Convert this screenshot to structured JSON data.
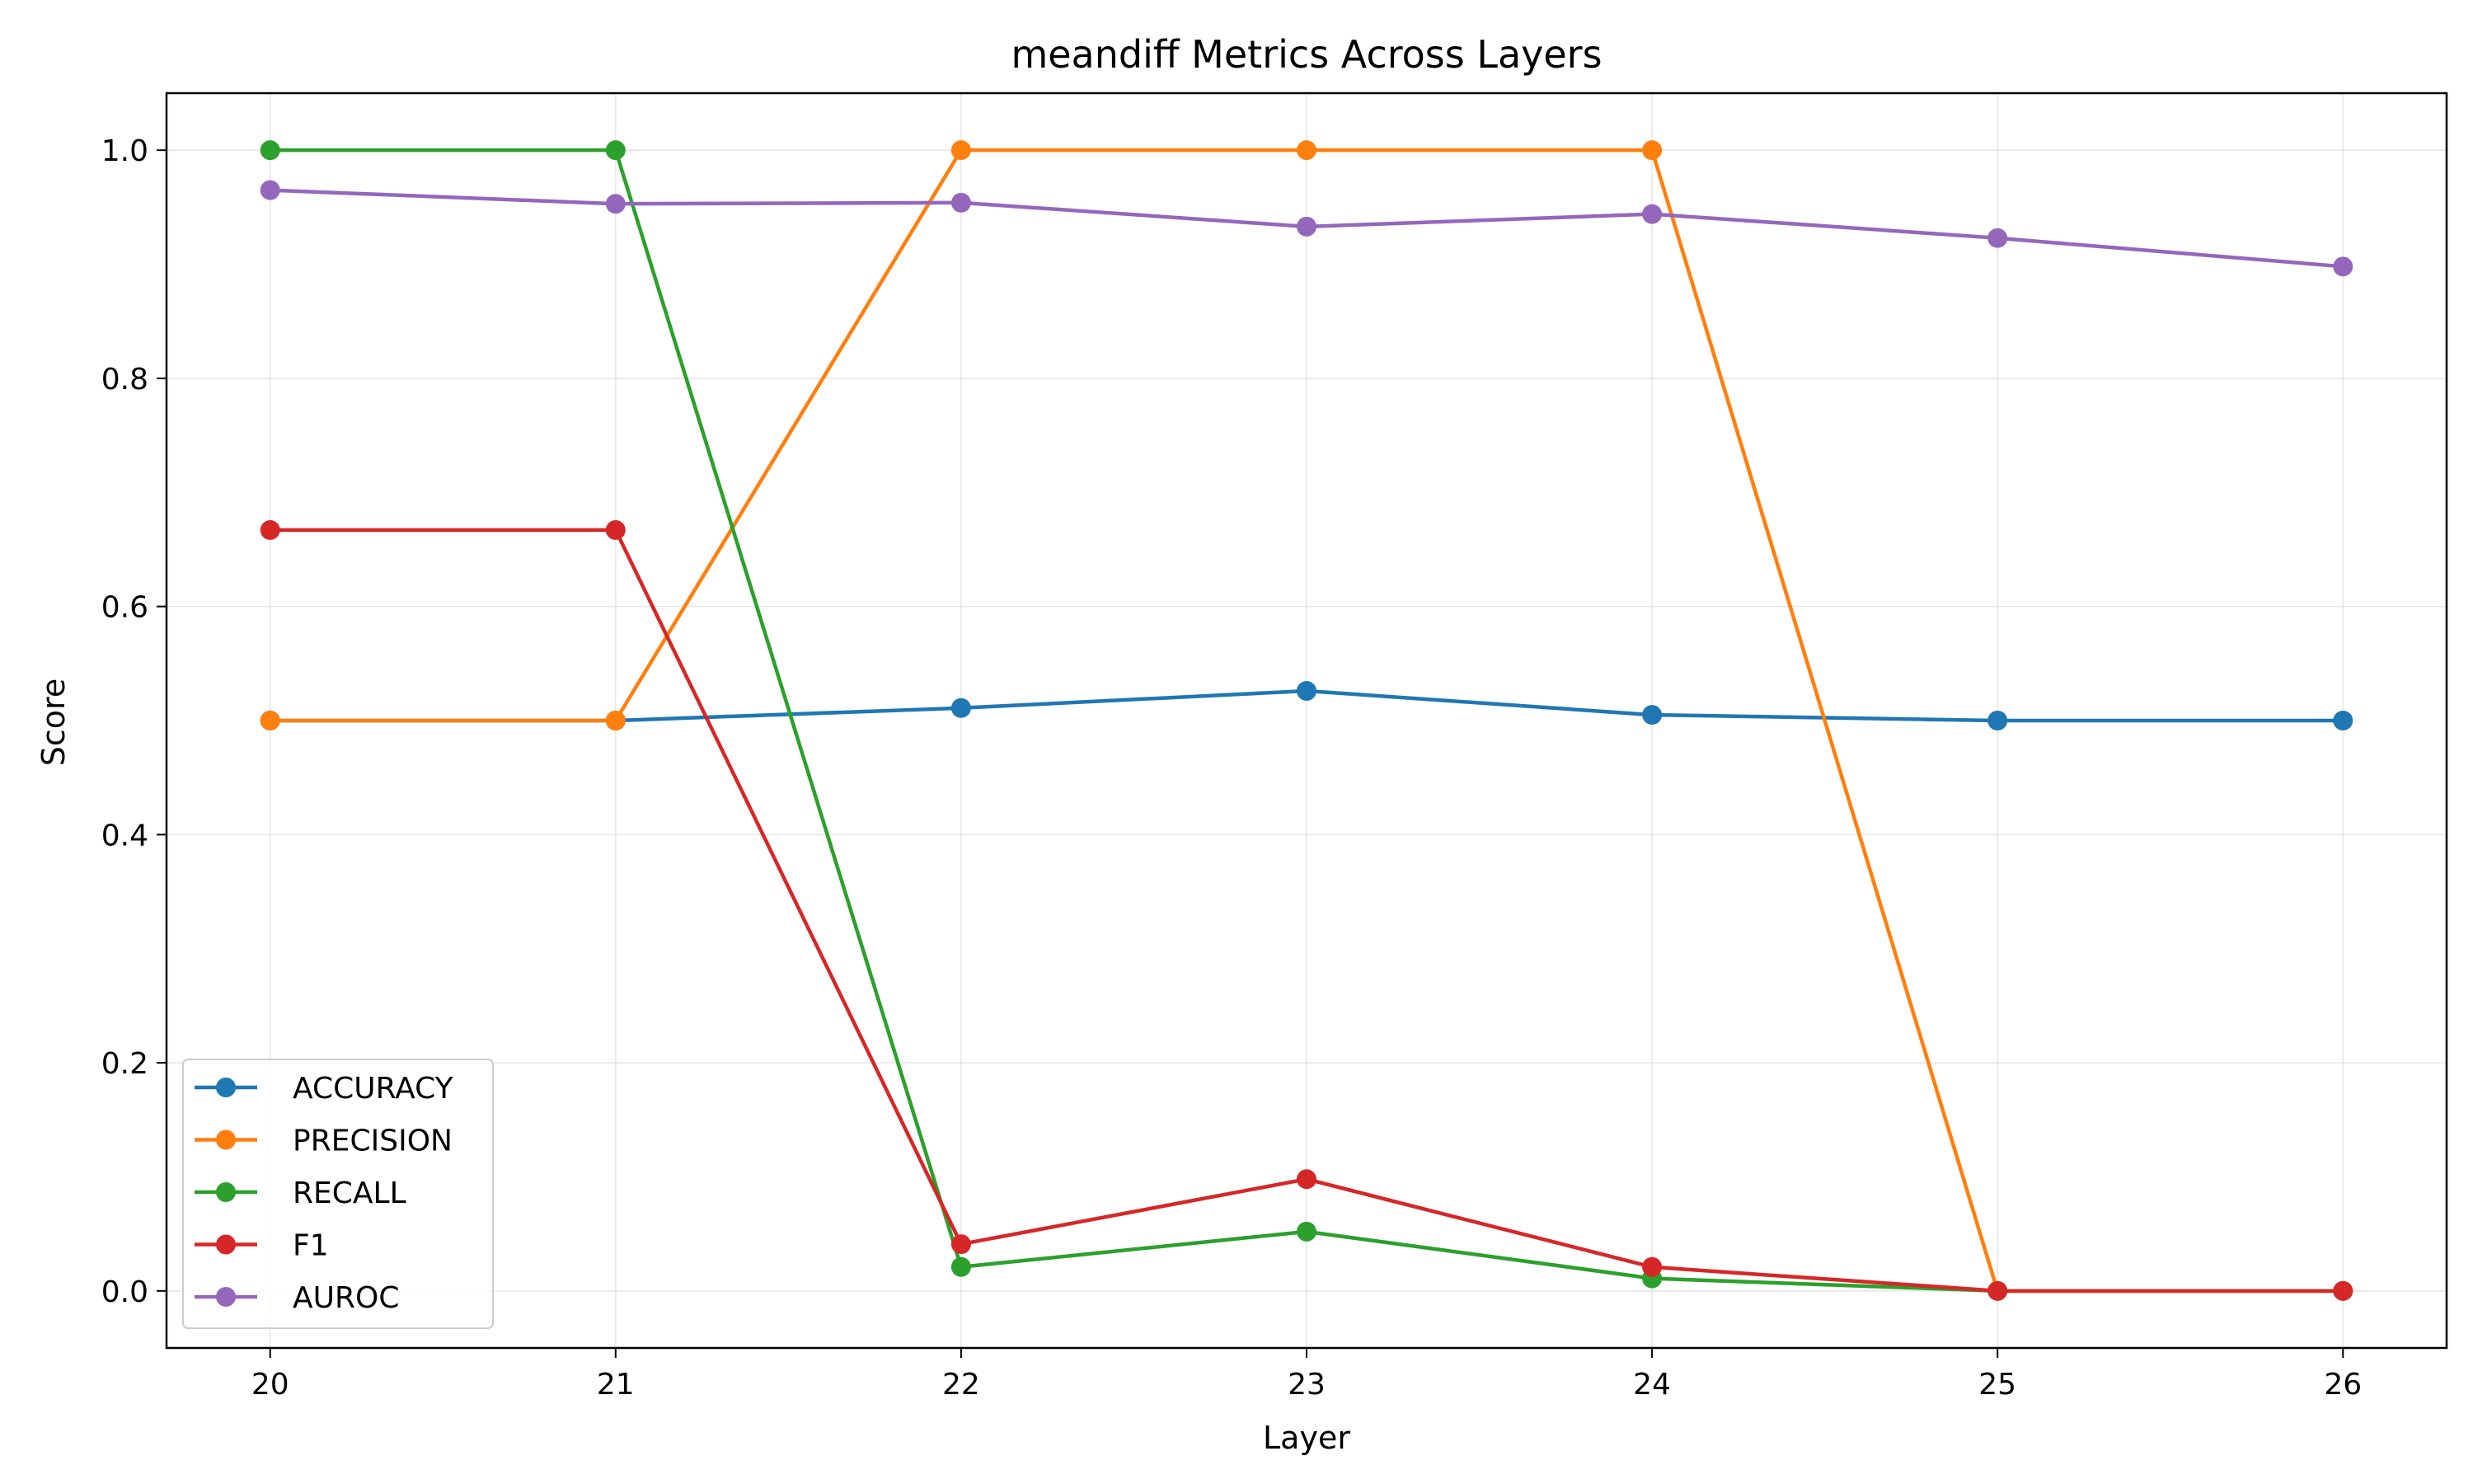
{
  "chart_data": {
    "type": "line",
    "title": "meandiff Metrics Across Layers",
    "xlabel": "Layer",
    "ylabel": "Score",
    "x": [
      20,
      21,
      22,
      23,
      24,
      25,
      26
    ],
    "xlim": [
      19.7,
      26.3
    ],
    "ylim": [
      -0.05,
      1.05
    ],
    "yticks": [
      0.0,
      0.2,
      0.4,
      0.6,
      0.8,
      1.0
    ],
    "ytick_labels": [
      "0.0",
      "0.2",
      "0.4",
      "0.6",
      "0.8",
      "1.0"
    ],
    "xtick_labels": [
      "20",
      "21",
      "22",
      "23",
      "24",
      "25",
      "26"
    ],
    "grid": true,
    "legend_position": "lower-left",
    "series": [
      {
        "name": "ACCURACY",
        "color": "#1f77b4",
        "values": [
          0.5,
          0.5,
          0.511,
          0.526,
          0.505,
          0.5,
          0.5
        ]
      },
      {
        "name": "PRECISION",
        "color": "#ff7f0e",
        "values": [
          0.5,
          0.5,
          1.0,
          1.0,
          1.0,
          0.0,
          0.0
        ]
      },
      {
        "name": "RECALL",
        "color": "#2ca02c",
        "values": [
          1.0,
          1.0,
          0.021,
          0.052,
          0.011,
          0.0,
          0.0
        ]
      },
      {
        "name": "F1",
        "color": "#d62728",
        "values": [
          0.667,
          0.667,
          0.041,
          0.098,
          0.021,
          0.0,
          0.0
        ]
      },
      {
        "name": "AUROC",
        "color": "#9467bd",
        "values": [
          0.965,
          0.953,
          0.954,
          0.933,
          0.944,
          0.923,
          0.898
        ]
      }
    ]
  }
}
